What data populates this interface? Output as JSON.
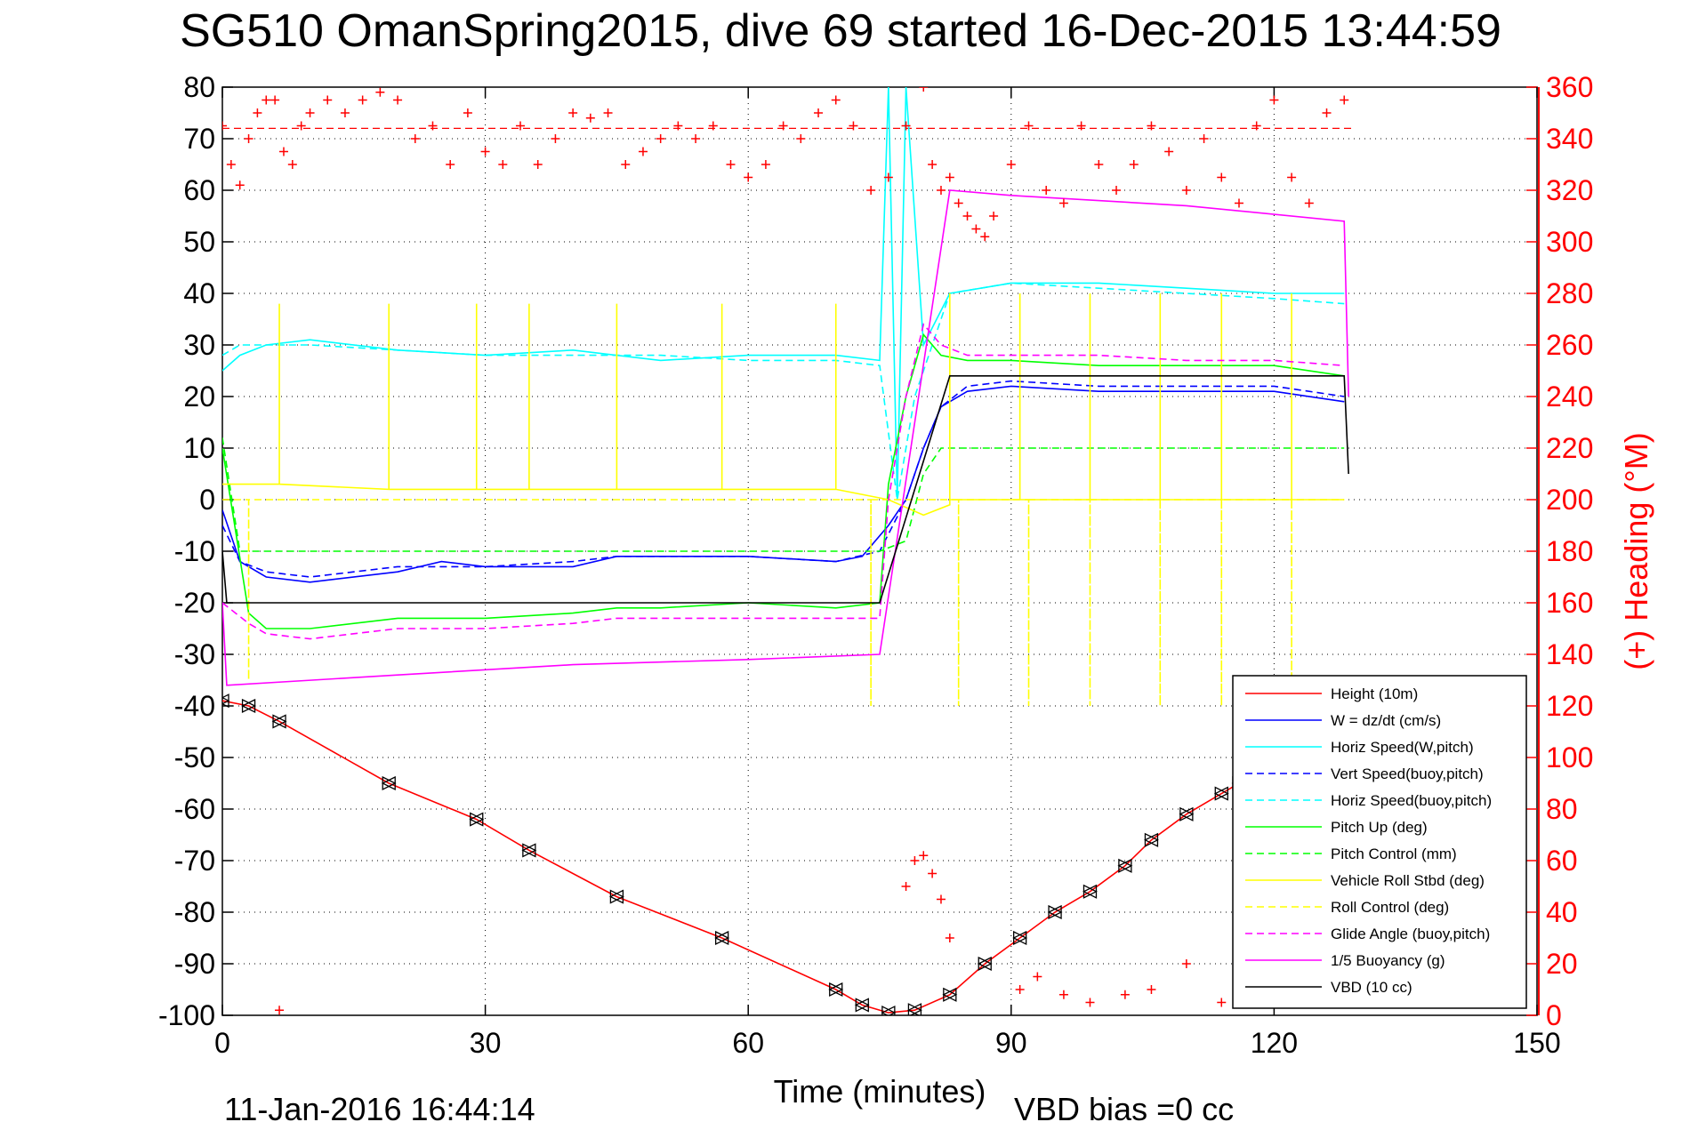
{
  "chart_data": {
    "type": "line",
    "title": "SG510 OmanSpring2015, dive 69 started 16-Dec-2015 13:44:59",
    "xlabel": "Time (minutes)",
    "ylabel_right": "(+) Heading (°M)",
    "xlim": [
      0,
      150
    ],
    "ylim": [
      -100,
      80
    ],
    "ylim_right": [
      0,
      360
    ],
    "x_ticks": [
      "0",
      "30",
      "60",
      "90",
      "120",
      "150"
    ],
    "y_ticks": [
      "-100",
      "-90",
      "-80",
      "-70",
      "-60",
      "-50",
      "-40",
      "-30",
      "-20",
      "-10",
      "0",
      "10",
      "20",
      "30",
      "40",
      "50",
      "60",
      "70",
      "80"
    ],
    "y_ticks_right": [
      "0",
      "20",
      "40",
      "60",
      "80",
      "100",
      "120",
      "140",
      "160",
      "180",
      "200",
      "220",
      "240",
      "260",
      "280",
      "300",
      "320",
      "340",
      "360"
    ],
    "grid": true,
    "legend_position": "bottom-right",
    "footer_left": "11-Jan-2016 16:44:14",
    "footer_right": "VBD bias =0 cc",
    "colors": {
      "height": "#ff0000",
      "w": "#0000ff",
      "horiz": "#00ffff",
      "vert_buoy": "#0000ff",
      "horiz_buoy": "#00ffff",
      "pitch": "#00ff00",
      "pitch_ctl": "#00ff00",
      "roll": "#ffff00",
      "roll_ctl": "#ffff00",
      "glide": "#ff00ff",
      "buoy": "#ff00ff",
      "vbd": "#000000",
      "heading": "#ff0000"
    },
    "series": [
      {
        "name": "Height (10m)",
        "key": "height",
        "dash": false,
        "x": [
          0,
          3,
          6.5,
          19,
          29,
          35,
          45,
          57,
          70,
          73,
          76,
          79,
          83,
          87,
          91,
          95,
          99,
          103,
          106,
          110,
          114,
          116,
          118
        ],
        "y": [
          -39,
          -40,
          -43,
          -55,
          -62,
          -68,
          -77,
          -85,
          -95,
          -98,
          -99.5,
          -99,
          -96,
          -90,
          -85,
          -80,
          -76,
          -71,
          -66,
          -61,
          -57,
          -55,
          -52
        ]
      },
      {
        "name": "W = dz/dt (cm/s)",
        "key": "w",
        "dash": false,
        "x": [
          0,
          2,
          5,
          10,
          20,
          25,
          30,
          40,
          45,
          50,
          60,
          70,
          73,
          76,
          78,
          80,
          82,
          85,
          90,
          100,
          110,
          120,
          128
        ],
        "y": [
          -2,
          -12,
          -15,
          -16,
          -14,
          -12,
          -13,
          -13,
          -11,
          -11,
          -11,
          -12,
          -11,
          -5,
          0,
          10,
          18,
          21,
          22,
          21,
          21,
          21,
          19
        ]
      },
      {
        "name": "Horiz Speed(W,pitch)",
        "key": "horiz",
        "dash": false,
        "x": [
          0,
          2,
          5,
          10,
          20,
          30,
          40,
          50,
          60,
          70,
          75,
          76,
          77,
          78,
          80,
          83,
          90,
          100,
          110,
          120,
          128
        ],
        "y": [
          25,
          28,
          30,
          31,
          29,
          28,
          29,
          27,
          28,
          28,
          27,
          80,
          0,
          80,
          30,
          40,
          42,
          42,
          41,
          40,
          40
        ]
      },
      {
        "name": "Vert Speed(buoy,pitch)",
        "key": "vert_buoy",
        "dash": true,
        "x": [
          0,
          2,
          5,
          10,
          20,
          30,
          40,
          45,
          50,
          60,
          70,
          75,
          78,
          80,
          82,
          85,
          90,
          100,
          110,
          120,
          128
        ],
        "y": [
          -5,
          -12,
          -14,
          -15,
          -13,
          -13,
          -12,
          -11,
          -11,
          -11,
          -12,
          -10,
          0,
          10,
          18,
          22,
          23,
          22,
          22,
          22,
          20
        ]
      },
      {
        "name": "Horiz Speed(buoy,pitch)",
        "key": "horiz_buoy",
        "dash": true,
        "x": [
          0,
          2,
          5,
          10,
          20,
          30,
          40,
          50,
          60,
          70,
          75,
          77,
          79,
          81,
          83,
          90,
          100,
          110,
          120,
          128
        ],
        "y": [
          28,
          30,
          30,
          30,
          29,
          28,
          28,
          28,
          27,
          27,
          26,
          0,
          20,
          30,
          40,
          42,
          41,
          40,
          39,
          38
        ]
      },
      {
        "name": "Pitch Up (deg)",
        "key": "pitch",
        "dash": false,
        "x": [
          0,
          3,
          5,
          10,
          20,
          30,
          40,
          45,
          50,
          60,
          70,
          75,
          76,
          78,
          80,
          82,
          85,
          90,
          100,
          110,
          120,
          128
        ],
        "y": [
          10,
          -22,
          -25,
          -25,
          -23,
          -23,
          -22,
          -21,
          -21,
          -20,
          -21,
          -20,
          3,
          20,
          32,
          28,
          27,
          27,
          26,
          26,
          26,
          24
        ]
      },
      {
        "name": "Pitch Control (mm)",
        "key": "pitch_ctl",
        "dash": true,
        "x": [
          0,
          2,
          5,
          20,
          40,
          60,
          70,
          75,
          78,
          80,
          82,
          90,
          100,
          110,
          120,
          128
        ],
        "y": [
          12,
          -10,
          -10,
          -10,
          -10,
          -10,
          -10,
          -10,
          -8,
          5,
          10,
          10,
          10,
          10,
          10,
          10
        ]
      },
      {
        "name": "Vehicle Roll Stbd (deg)",
        "key": "roll",
        "dash": false,
        "x": [
          0,
          6.5,
          6.5,
          6.5,
          19,
          19,
          19,
          29,
          29,
          29,
          35,
          35,
          35,
          45,
          45,
          45,
          57,
          57,
          57,
          70,
          70,
          70,
          76,
          80,
          83,
          83,
          83,
          91,
          91,
          91,
          99,
          99,
          99,
          107,
          107,
          107,
          114,
          114,
          114,
          122,
          122,
          122,
          128
        ],
        "y": [
          3,
          3,
          38,
          3,
          2,
          38,
          2,
          2,
          38,
          2,
          2,
          38,
          2,
          2,
          38,
          2,
          2,
          38,
          2,
          2,
          38,
          2,
          0,
          -3,
          -1,
          40,
          0,
          0,
          40,
          0,
          0,
          40,
          0,
          0,
          40,
          0,
          0,
          40,
          0,
          0,
          40,
          0,
          0
        ]
      },
      {
        "name": "Roll Control (deg)",
        "key": "roll_ctl",
        "dash": true,
        "x": [
          0,
          3,
          3,
          3,
          74,
          74,
          74,
          80,
          84,
          84,
          84,
          92,
          92,
          92,
          99,
          99,
          99,
          107,
          107,
          107,
          114,
          114,
          114,
          122,
          122,
          122,
          128
        ],
        "y": [
          0,
          0,
          -35,
          0,
          0,
          -40,
          0,
          0,
          0,
          -40,
          0,
          0,
          -40,
          0,
          0,
          -40,
          0,
          0,
          -40,
          0,
          0,
          -40,
          0,
          0,
          -40,
          0,
          0
        ]
      },
      {
        "name": "Glide Angle (buoy,pitch)",
        "key": "glide",
        "dash": true,
        "x": [
          0,
          3,
          5,
          10,
          20,
          30,
          40,
          45,
          50,
          60,
          70,
          75,
          76,
          78,
          80,
          82,
          85,
          90,
          100,
          110,
          120,
          128
        ],
        "y": [
          -20,
          -24,
          -26,
          -27,
          -25,
          -25,
          -24,
          -23,
          -23,
          -23,
          -23,
          -23,
          0,
          20,
          34,
          30,
          28,
          28,
          28,
          27,
          27,
          26
        ]
      },
      {
        "name": "1/5 Buoyancy (g)",
        "key": "buoy",
        "dash": false,
        "x": [
          0,
          0.5,
          20,
          40,
          60,
          75,
          83,
          90,
          110,
          128,
          128.5
        ],
        "y": [
          -20,
          -36,
          -34,
          -32,
          -31,
          -30,
          60,
          59,
          57,
          54,
          20
        ]
      },
      {
        "name": "VBD (10 cc)",
        "key": "vbd",
        "dash": false,
        "x": [
          0,
          0.5,
          20,
          40,
          60,
          70,
          75,
          83,
          90,
          110,
          128,
          128.5
        ],
        "y": [
          -10,
          -20,
          -20,
          -20,
          -20,
          -20,
          -20,
          24,
          24,
          24,
          24,
          5
        ]
      }
    ],
    "heading_points": {
      "x": [
        0,
        1,
        2,
        3,
        4,
        5,
        6,
        7,
        8,
        9,
        10,
        12,
        14,
        16,
        18,
        20,
        22,
        24,
        26,
        28,
        30,
        32,
        34,
        36,
        38,
        40,
        42,
        44,
        46,
        48,
        50,
        52,
        54,
        56,
        58,
        60,
        62,
        64,
        66,
        68,
        70,
        72,
        74,
        76,
        78,
        80,
        81,
        82,
        83,
        84,
        85,
        86,
        87,
        88,
        90,
        92,
        94,
        96,
        98,
        100,
        102,
        104,
        106,
        108,
        110,
        112,
        114,
        116,
        118,
        120,
        122,
        124,
        126,
        128,
        6.5,
        78,
        79,
        80,
        81,
        82,
        83,
        91,
        93,
        96,
        99,
        103,
        106,
        110,
        114,
        118,
        122
      ],
      "y": [
        345,
        330,
        322,
        340,
        350,
        355,
        355,
        335,
        330,
        345,
        350,
        355,
        350,
        355,
        358,
        355,
        340,
        345,
        330,
        350,
        335,
        330,
        345,
        330,
        340,
        350,
        348,
        350,
        330,
        335,
        340,
        345,
        340,
        345,
        330,
        325,
        330,
        345,
        340,
        350,
        355,
        345,
        320,
        325,
        345,
        360,
        330,
        320,
        325,
        315,
        310,
        305,
        302,
        310,
        330,
        345,
        320,
        315,
        345,
        330,
        320,
        330,
        345,
        335,
        320,
        340,
        325,
        315,
        345,
        355,
        325,
        315,
        350,
        355,
        2,
        50,
        60,
        62,
        55,
        45,
        30,
        10,
        15,
        8,
        5,
        8,
        10,
        20,
        5,
        12,
        5
      ]
    }
  }
}
